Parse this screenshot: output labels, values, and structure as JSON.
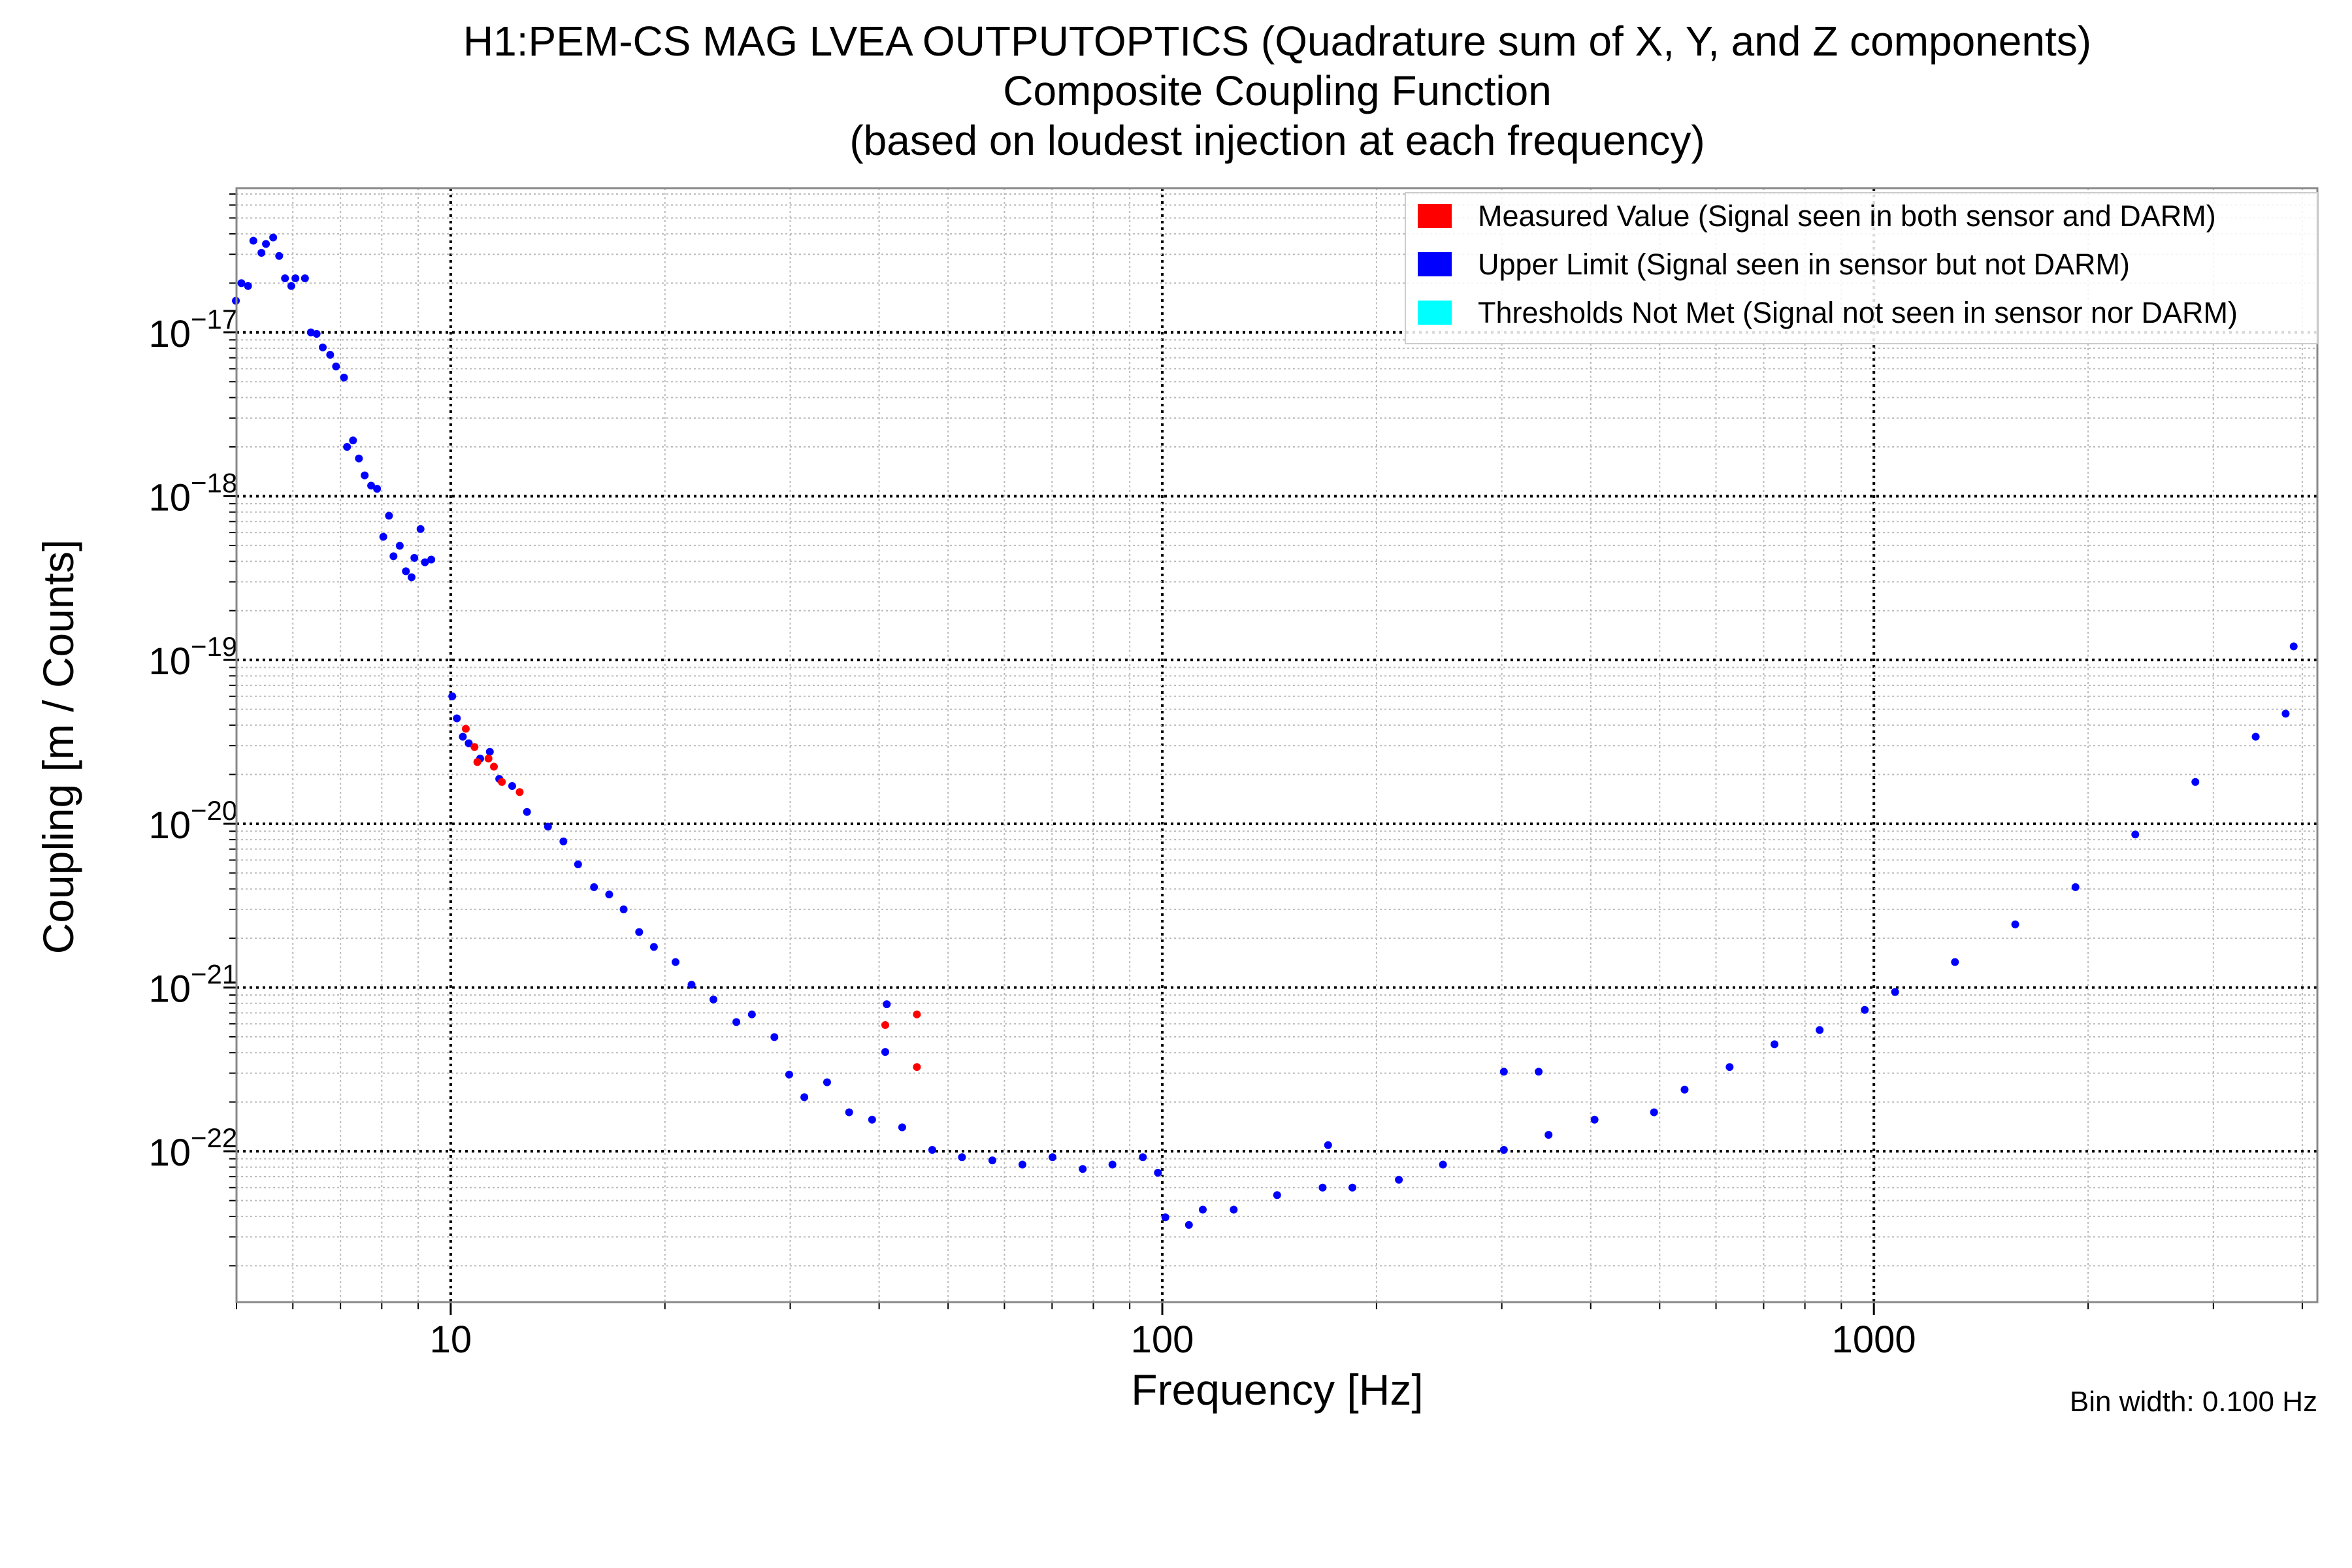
{
  "chart_data": {
    "type": "scatter",
    "title": [
      "H1:PEM-CS MAG LVEA OUTPUTOPTICS (Quadrature sum of X, Y, and Z components)",
      "Composite Coupling Function",
      "(based on loudest injection at each frequency)"
    ],
    "xlabel": "Frequency [Hz]",
    "ylabel": "Coupling [m / Counts]",
    "xscale": "log",
    "yscale": "log",
    "xlim": [
      5,
      4200
    ],
    "ylim": [
      1.2e-23,
      7.6e-17
    ],
    "grid": true,
    "x_ticks": [
      {
        "value": 10,
        "label": "10"
      },
      {
        "value": 100,
        "label": "100"
      },
      {
        "value": 1000,
        "label": "1000"
      }
    ],
    "y_ticks": [
      {
        "value": 1e-17,
        "base": "10",
        "exp": "−17"
      },
      {
        "value": 1e-18,
        "base": "10",
        "exp": "−18"
      },
      {
        "value": 1e-19,
        "base": "10",
        "exp": "−19"
      },
      {
        "value": 1e-20,
        "base": "10",
        "exp": "−20"
      },
      {
        "value": 1e-21,
        "base": "10",
        "exp": "−21"
      },
      {
        "value": 1e-22,
        "base": "10",
        "exp": "−22"
      }
    ],
    "legend_position": "top-right",
    "series": [
      {
        "name": "Measured Value (Signal seen in both sensor and DARM)",
        "color": "#ff0000",
        "points": [
          [
            10.5,
            3.8e-20
          ],
          [
            10.8,
            2.94e-20
          ],
          [
            10.9,
            2.38e-20
          ],
          [
            11.3,
            2.5e-20
          ],
          [
            11.5,
            2.23e-20
          ],
          [
            11.8,
            1.8e-20
          ],
          [
            12.5,
            1.56e-20
          ],
          [
            40.8,
            5.9e-22
          ],
          [
            45.2,
            6.85e-22
          ],
          [
            45.2,
            3.27e-22
          ]
        ]
      },
      {
        "name": "Upper Limit (Signal seen in sensor but not DARM)",
        "color": "#0000ff",
        "points": [
          [
            4.99,
            1.56e-17
          ],
          [
            5.08,
            2e-17
          ],
          [
            5.19,
            1.92e-17
          ],
          [
            5.28,
            3.63e-17
          ],
          [
            5.42,
            3.06e-17
          ],
          [
            5.5,
            3.47e-17
          ],
          [
            5.63,
            3.8e-17
          ],
          [
            5.74,
            2.93e-17
          ],
          [
            5.85,
            2.14e-17
          ],
          [
            5.97,
            1.92e-17
          ],
          [
            6.05,
            2.14e-17
          ],
          [
            6.24,
            2.14e-17
          ],
          [
            6.36,
            1e-17
          ],
          [
            6.48,
            9.8e-18
          ],
          [
            6.61,
            8.1e-18
          ],
          [
            6.77,
            7.3e-18
          ],
          [
            6.9,
            6.2e-18
          ],
          [
            7.08,
            5.3e-18
          ],
          [
            7.15,
            2e-18
          ],
          [
            7.29,
            2.19e-18
          ],
          [
            7.43,
            1.7e-18
          ],
          [
            7.57,
            1.34e-18
          ],
          [
            7.73,
            1.16e-18
          ],
          [
            7.88,
            1.11e-18
          ],
          [
            8.04,
            5.65e-19
          ],
          [
            8.19,
            7.6e-19
          ],
          [
            8.31,
            4.3e-19
          ],
          [
            8.48,
            4.98e-19
          ],
          [
            8.65,
            3.48e-19
          ],
          [
            8.81,
            3.2e-19
          ],
          [
            8.89,
            4.2e-19
          ],
          [
            9.07,
            6.3e-19
          ],
          [
            9.2,
            3.95e-19
          ],
          [
            9.39,
            4.1e-19
          ],
          [
            10.05,
            6e-20
          ],
          [
            10.2,
            4.4e-20
          ],
          [
            10.4,
            3.4e-20
          ],
          [
            10.6,
            3.1e-20
          ],
          [
            11.0,
            2.5e-20
          ],
          [
            11.35,
            2.75e-20
          ],
          [
            11.7,
            1.88e-20
          ],
          [
            12.2,
            1.7e-20
          ],
          [
            12.8,
            1.18e-20
          ],
          [
            13.7,
            9.6e-21
          ],
          [
            14.4,
            7.8e-21
          ],
          [
            15.1,
            5.65e-21
          ],
          [
            15.9,
            4.1e-21
          ],
          [
            16.7,
            3.7e-21
          ],
          [
            17.5,
            3e-21
          ],
          [
            18.4,
            2.18e-21
          ],
          [
            19.3,
            1.77e-21
          ],
          [
            20.7,
            1.43e-21
          ],
          [
            21.8,
            1.04e-21
          ],
          [
            23.4,
            8.45e-22
          ],
          [
            25.2,
            6.15e-22
          ],
          [
            26.5,
            6.85e-22
          ],
          [
            28.5,
            4.98e-22
          ],
          [
            29.9,
            2.94e-22
          ],
          [
            31.4,
            2.14e-22
          ],
          [
            33.8,
            2.64e-22
          ],
          [
            36.3,
            1.73e-22
          ],
          [
            39.1,
            1.56e-22
          ],
          [
            40.8,
            4.04e-22
          ],
          [
            41.0,
            7.9e-22
          ],
          [
            43.1,
            1.4e-22
          ],
          [
            47.5,
            1.02e-22
          ],
          [
            52.3,
            9.2e-23
          ],
          [
            57.7,
            8.8e-23
          ],
          [
            63.6,
            8.3e-23
          ],
          [
            70.1,
            9.2e-23
          ],
          [
            77.3,
            7.8e-23
          ],
          [
            85.1,
            8.3e-23
          ],
          [
            93.9,
            9.2e-23
          ],
          [
            98.6,
            7.4e-23
          ],
          [
            101,
            3.95e-23
          ],
          [
            109,
            3.55e-23
          ],
          [
            114,
            4.4e-23
          ],
          [
            126,
            4.4e-23
          ],
          [
            145,
            5.4e-23
          ],
          [
            168,
            6e-23
          ],
          [
            171,
            1.09e-22
          ],
          [
            185,
            6e-23
          ],
          [
            215,
            6.7e-23
          ],
          [
            248,
            8.3e-23
          ],
          [
            302,
            1.02e-22
          ],
          [
            302,
            3.06e-22
          ],
          [
            338,
            3.06e-22
          ],
          [
            349,
            1.26e-22
          ],
          [
            405,
            1.56e-22
          ],
          [
            491,
            1.73e-22
          ],
          [
            542,
            2.38e-22
          ],
          [
            627,
            3.27e-22
          ],
          [
            725,
            4.5e-22
          ],
          [
            839,
            5.5e-22
          ],
          [
            971,
            7.3e-22
          ],
          [
            1071,
            9.4e-22
          ],
          [
            1300,
            1.43e-21
          ],
          [
            1580,
            2.43e-21
          ],
          [
            1920,
            4.1e-21
          ],
          [
            2330,
            8.6e-21
          ],
          [
            2830,
            1.8e-20
          ],
          [
            3440,
            3.4e-20
          ],
          [
            3790,
            4.7e-20
          ],
          [
            3890,
            1.21e-19
          ]
        ]
      },
      {
        "name": "Thresholds Not Met (Signal not seen in sensor nor DARM)",
        "color": "#00ffff",
        "points": []
      }
    ],
    "annotation": "Bin width: 0.100 Hz"
  }
}
